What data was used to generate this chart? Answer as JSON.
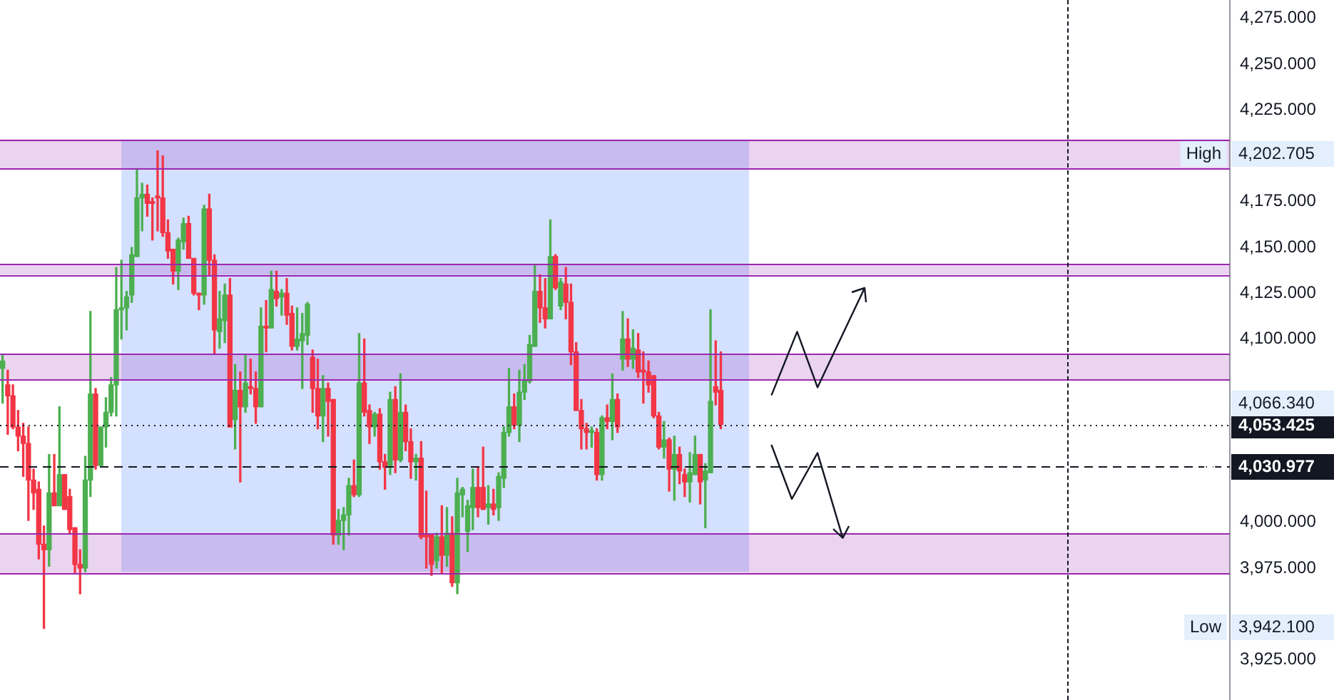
{
  "chart_data": {
    "type": "candlestick",
    "categories": [
      null,
      null,
      null,
      null,
      null,
      null,
      null,
      null,
      null,
      null,
      null,
      null,
      null,
      null,
      null,
      null,
      null,
      null,
      null,
      null,
      null,
      null,
      null,
      null,
      null,
      null,
      null,
      null,
      null,
      null,
      null,
      null,
      null,
      null,
      null,
      null,
      null,
      null,
      null,
      null,
      null,
      null,
      null,
      null,
      null,
      null,
      null,
      null,
      null,
      null,
      null,
      null,
      null,
      null,
      null,
      null,
      null,
      null,
      null,
      null,
      null,
      null,
      null,
      null,
      null,
      null,
      null,
      null,
      null,
      null,
      null,
      null,
      null,
      null,
      null,
      null,
      null,
      null,
      null,
      null,
      null,
      null,
      null,
      null,
      null,
      null,
      null,
      null,
      null,
      null,
      null,
      null,
      null,
      null,
      null,
      null,
      null,
      null,
      null,
      null,
      null,
      null,
      null,
      null,
      null,
      null,
      null,
      null,
      null,
      null,
      null,
      null,
      null,
      null,
      null,
      null,
      null,
      null,
      null,
      null,
      null,
      null,
      null,
      null,
      null,
      null,
      null,
      null,
      null,
      null,
      null,
      null,
      null,
      null,
      null,
      null,
      null,
      null,
      null,
      null,
      null,
      null,
      null,
      null,
      null,
      null,
      null,
      null,
      null,
      null,
      null,
      null,
      null,
      null,
      null,
      null,
      null,
      null,
      null,
      null,
      null,
      null,
      null,
      null,
      null,
      null,
      null,
      null,
      null,
      null,
      null,
      null,
      null,
      null,
      null,
      null,
      null,
      null,
      null,
      null,
      null,
      null,
      null,
      null,
      null,
      null,
      null,
      null,
      null,
      null,
      null,
      null,
      null,
      null,
      null,
      null,
      null,
      null,
      null,
      null,
      null,
      null,
      null,
      null,
      null,
      null,
      null,
      null,
      null,
      null,
      null,
      null,
      null,
      null,
      null,
      null,
      null,
      null,
      null,
      null,
      null,
      null,
      null,
      null,
      null,
      null,
      null,
      null,
      null,
      null,
      null,
      null,
      null,
      null,
      null,
      null,
      null,
      null
    ],
    "ohlc": [
      [
        4084,
        4091,
        4065,
        4088
      ],
      [
        4075,
        4083,
        4048,
        4069
      ],
      [
        4069,
        4075,
        4051,
        4052
      ],
      [
        4052,
        4061,
        4039,
        4047
      ],
      [
        4047,
        4054,
        4025,
        4043
      ],
      [
        4043,
        4052,
        4001,
        4023
      ],
      [
        4023,
        4029,
        4007,
        4016
      ],
      [
        4018,
        4022,
        3980,
        3988
      ],
      [
        3988,
        3998,
        3942.1,
        3985
      ],
      [
        3985,
        4037,
        3976,
        4016
      ],
      [
        4016,
        4037,
        4009,
        4009
      ],
      [
        4009,
        4063,
        4009,
        4026
      ],
      [
        4026,
        4026,
        4007,
        4007
      ],
      [
        4014,
        4018,
        3994,
        3996
      ],
      [
        3997,
        3997,
        3972,
        3977
      ],
      [
        3977,
        3985,
        3961,
        3975
      ],
      [
        3975,
        4036,
        3973,
        4023
      ],
      [
        4023,
        4115,
        4014,
        4070
      ],
      [
        4070,
        4073,
        4029,
        4031
      ],
      [
        4031,
        4052,
        4031,
        4052
      ],
      [
        4052,
        4068,
        4041,
        4060
      ],
      [
        4060,
        4079,
        4058,
        4075
      ],
      [
        4075,
        4139,
        4058,
        4116
      ],
      [
        4116,
        4143,
        4100,
        4117
      ],
      [
        4117,
        4126,
        4105,
        4123
      ],
      [
        4124,
        4150,
        4120,
        4146
      ],
      [
        4145,
        4193,
        4145,
        4177
      ],
      [
        4177,
        4185,
        4159,
        4179
      ],
      [
        4179,
        4184,
        4167,
        4174
      ],
      [
        4175,
        4177,
        4154,
        4174
      ],
      [
        4178,
        4202.705,
        4159,
        4177
      ],
      [
        4177,
        4200,
        4156,
        4158
      ],
      [
        4158,
        4165,
        4144,
        4148
      ],
      [
        4149,
        4149,
        4130,
        4137
      ],
      [
        4137,
        4155,
        4127,
        4154
      ],
      [
        4153,
        4166,
        4149,
        4163
      ],
      [
        4163,
        4167,
        4144,
        4144
      ],
      [
        4144,
        4144,
        4124,
        4125
      ],
      [
        4125,
        4125,
        4116,
        4124
      ],
      [
        4124,
        4173,
        4119,
        4171
      ],
      [
        4171,
        4179,
        4135,
        4143
      ],
      [
        4143,
        4146,
        4092,
        4105
      ],
      [
        4104,
        4126,
        4095,
        4111
      ],
      [
        4110,
        4130,
        4098,
        4124
      ],
      [
        4124,
        4133,
        4052,
        4052
      ],
      [
        4056,
        4086,
        4040,
        4072
      ],
      [
        4072,
        4082,
        4022,
        4063
      ],
      [
        4063,
        4091,
        4060,
        4076
      ],
      [
        4074,
        4089,
        4070,
        4073
      ],
      [
        4073,
        4082,
        4054,
        4063
      ],
      [
        4063,
        4117,
        4063,
        4107
      ],
      [
        4107,
        4121,
        4093,
        4106
      ],
      [
        4106,
        4137,
        4106,
        4127
      ],
      [
        4126,
        4137,
        4118,
        4122
      ],
      [
        4123,
        4127,
        4113,
        4125
      ],
      [
        4125,
        4133,
        4108,
        4113
      ],
      [
        4114,
        4118,
        4094,
        4096
      ],
      [
        4096,
        4117,
        4094,
        4100
      ],
      [
        4099,
        4114,
        4073,
        4103
      ],
      [
        4102,
        4120,
        4097,
        4119
      ],
      [
        4090,
        4094,
        4060,
        4073
      ],
      [
        4073,
        4089,
        4051,
        4058
      ],
      [
        4058,
        4080,
        4044,
        4073
      ],
      [
        4073,
        4076,
        4047,
        4066
      ],
      [
        4067,
        4067,
        3988,
        3993
      ],
      [
        3993,
        4007,
        3988,
        4001
      ],
      [
        4001,
        4008,
        3985,
        4004
      ],
      [
        4004,
        4024,
        3993,
        4020
      ],
      [
        4020,
        4034,
        4014,
        4015
      ],
      [
        4015,
        4103,
        4014,
        4076
      ],
      [
        4076,
        4100,
        4058,
        4060
      ],
      [
        4061,
        4064,
        4043,
        4052
      ],
      [
        4052,
        4060,
        4047,
        4059
      ],
      [
        4059,
        4062,
        4029,
        4033
      ],
      [
        4033,
        4037,
        4018,
        4030
      ],
      [
        4031,
        4071,
        4026,
        4067
      ],
      [
        4067,
        4074,
        4027,
        4034
      ],
      [
        4034,
        4081,
        4033,
        4060
      ],
      [
        4060,
        4064,
        4039,
        4044
      ],
      [
        4044,
        4051,
        4024,
        4033
      ],
      [
        4033,
        4037,
        4023,
        4035
      ],
      [
        4035,
        4044,
        3991,
        3992
      ],
      [
        3993,
        4017,
        3975,
        3992
      ],
      [
        3993,
        3993,
        3971,
        3977
      ],
      [
        3979,
        3994,
        3975,
        3992
      ],
      [
        3992,
        4009,
        3972,
        3982
      ],
      [
        3982,
        4008,
        3976,
        3994
      ],
      [
        3994,
        4003,
        3965,
        3967
      ],
      [
        3967,
        4024,
        3961,
        4016
      ],
      [
        4015,
        4019,
        4003,
        4018
      ],
      [
        3995,
        4012,
        3984,
        4009
      ],
      [
        4008,
        4029,
        3996,
        4019
      ],
      [
        4019,
        4030,
        4003,
        4008
      ],
      [
        4019,
        4041,
        4007,
        4007
      ],
      [
        4008,
        4020,
        3999,
        4010
      ],
      [
        4010,
        4018,
        4004,
        4007
      ],
      [
        4008,
        4027,
        4001,
        4025
      ],
      [
        4024,
        4052,
        4019,
        4049
      ],
      [
        4049,
        4084,
        4047,
        4063
      ],
      [
        4063,
        4070,
        4051,
        4053
      ],
      [
        4053,
        4083,
        4044,
        4071
      ],
      [
        4071,
        4086,
        4067,
        4077
      ],
      [
        4077,
        4102,
        4076,
        4097
      ],
      [
        4096,
        4140,
        4096,
        4126
      ],
      [
        4126,
        4135,
        4109,
        4117
      ],
      [
        4117,
        4133,
        4106,
        4111
      ],
      [
        4111,
        4165,
        4111,
        4145
      ],
      [
        4145,
        4146,
        4127,
        4128
      ],
      [
        4118,
        4133,
        4116,
        4131
      ],
      [
        4130,
        4139,
        4111,
        4120
      ],
      [
        4120,
        4130,
        4086,
        4093
      ],
      [
        4093,
        4098,
        4061,
        4061
      ],
      [
        4061,
        4067,
        4040,
        4051
      ],
      [
        4051,
        4054,
        4040,
        4049
      ],
      [
        4049,
        4052,
        4041,
        4050
      ],
      [
        4049,
        4051,
        4023,
        4026
      ],
      [
        4026,
        4058,
        4023,
        4057
      ],
      [
        4057,
        4064,
        4051,
        4055
      ],
      [
        4055,
        4081,
        4045,
        4067
      ],
      [
        4067,
        4070,
        4049,
        4052
      ],
      [
        4089,
        4115,
        4083,
        4100
      ],
      [
        4100,
        4111,
        4085,
        4089
      ],
      [
        4089,
        4105,
        4084,
        4095
      ],
      [
        4094,
        4103,
        4079,
        4082
      ],
      [
        4083,
        4093,
        4065,
        4082
      ],
      [
        4082,
        4088,
        4071,
        4075
      ],
      [
        4080,
        4080,
        4057,
        4058
      ],
      [
        4058,
        4060,
        4040,
        4041
      ],
      [
        4041,
        4055,
        4035,
        4045
      ],
      [
        4045,
        4046,
        4017,
        4029
      ],
      [
        4029,
        4047,
        4012,
        4037
      ],
      [
        4037,
        4041,
        4021,
        4028
      ],
      [
        4026,
        4029,
        4014,
        4022
      ],
      [
        4022,
        4038,
        4011,
        4027
      ],
      [
        4026,
        4047,
        4026,
        4037
      ],
      [
        4037,
        4037,
        4010,
        4022
      ],
      [
        4023,
        4032,
        3997,
        4028
      ],
      [
        4027,
        4116,
        4027,
        4066
      ],
      [
        4074,
        4099,
        4064,
        4071
      ],
      [
        4072,
        4093,
        4051,
        4053.425
      ],
      null,
      null,
      null,
      null,
      null,
      null,
      null,
      null,
      null,
      null,
      null,
      null,
      null,
      null,
      null,
      null,
      null,
      null,
      null,
      null,
      null,
      null,
      null,
      null,
      null,
      null,
      null,
      null,
      null,
      null,
      null,
      null,
      null,
      null,
      null,
      null,
      null,
      null,
      null,
      null,
      null,
      null,
      null,
      null,
      null,
      null,
      null,
      null,
      null,
      null,
      null,
      null,
      null,
      null,
      null,
      null,
      null,
      null,
      null,
      null,
      null,
      null,
      null,
      null,
      null,
      null,
      null,
      null,
      null,
      null,
      null,
      null,
      null,
      null,
      null,
      null,
      null,
      null,
      null,
      null,
      null,
      null,
      null,
      null,
      null,
      null,
      null,
      null,
      null,
      null,
      null,
      null,
      null,
      null,
      null,
      null,
      null,
      null
    ],
    "colors": [
      "#4caf50",
      "#f23645",
      "#f23645",
      "#f23645",
      "#f23645",
      "#f23645",
      "#f23645",
      "#f23645",
      "#f23645",
      "#4caf50",
      "#f23645",
      "#4caf50",
      "#f23645",
      "#f23645",
      "#f23645",
      "#f23645",
      "#4caf50",
      "#4caf50",
      "#f23645",
      "#4caf50",
      "#4caf50",
      "#4caf50",
      "#4caf50",
      "#4caf50",
      "#4caf50",
      "#4caf50",
      "#4caf50",
      "#4caf50",
      "#f23645",
      "#f23645",
      "#f23645",
      "#f23645",
      "#f23645",
      "#f23645",
      "#4caf50",
      "#4caf50",
      "#f23645",
      "#f23645",
      "#f23645",
      "#4caf50",
      "#f23645",
      "#f23645",
      "#4caf50",
      "#4caf50",
      "#f23645",
      "#4caf50",
      "#f23645",
      "#4caf50",
      "#f23645",
      "#f23645",
      "#4caf50",
      "#f23645",
      "#4caf50",
      "#f23645",
      "#4caf50",
      "#f23645",
      "#f23645",
      "#4caf50",
      "#4caf50",
      "#4caf50",
      "#f23645",
      "#f23645",
      "#4caf50",
      "#f23645",
      "#f23645",
      "#4caf50",
      "#4caf50",
      "#4caf50",
      "#f23645",
      "#4caf50",
      "#f23645",
      "#f23645",
      "#4caf50",
      "#f23645",
      "#f23645",
      "#4caf50",
      "#f23645",
      "#4caf50",
      "#f23645",
      "#f23645",
      "#4caf50",
      "#f23645",
      "#f23645",
      "#f23645",
      "#4caf50",
      "#f23645",
      "#4caf50",
      "#f23645",
      "#4caf50",
      "#4caf50",
      "#4caf50",
      "#4caf50",
      "#f23645",
      "#f23645",
      "#4caf50",
      "#f23645",
      "#4caf50",
      "#4caf50",
      "#4caf50",
      "#f23645",
      "#4caf50",
      "#4caf50",
      "#4caf50",
      "#4caf50",
      "#f23645",
      "#f23645",
      "#4caf50",
      "#f23645",
      "#4caf50",
      "#f23645",
      "#f23645",
      "#f23645",
      "#f23645",
      "#f23645",
      "#4caf50",
      "#f23645",
      "#4caf50",
      "#f23645",
      "#4caf50",
      "#f23645",
      "#4caf50",
      "#f23645",
      "#4caf50",
      "#f23645",
      "#f23645",
      "#f23645",
      "#f23645",
      "#f23645",
      "#4caf50",
      "#f23645",
      "#4caf50",
      "#f23645",
      "#f23645",
      "#4caf50",
      "#4caf50",
      "#f23645",
      "#4caf50",
      "#4caf50",
      "#f23645",
      "#f23645",
      null,
      null,
      null,
      null,
      null,
      null,
      null,
      null,
      null,
      null,
      null,
      null,
      null,
      null,
      null,
      null,
      null,
      null,
      null,
      null,
      null,
      null,
      null,
      null,
      null,
      null,
      null,
      null,
      null,
      null,
      null,
      null,
      null,
      null,
      null,
      null,
      null,
      null,
      null,
      null,
      null,
      null,
      null,
      null,
      null,
      null,
      null,
      null,
      null,
      null,
      null,
      null,
      null,
      null,
      null,
      null,
      null,
      null,
      null,
      null,
      null,
      null,
      null,
      null,
      null,
      null,
      null,
      null,
      null,
      null,
      null,
      null,
      null,
      null,
      null,
      null,
      null,
      null,
      null,
      null,
      null,
      null,
      null,
      null,
      null,
      null,
      null,
      null,
      null,
      null,
      null,
      null,
      null,
      null,
      null,
      null,
      null,
      null
    ],
    "ylim": [
      3903,
      4285
    ],
    "yticks": [
      {
        "value": 3925,
        "label": "3,925.000"
      },
      {
        "value": 3975,
        "label": "3,975.000"
      },
      {
        "value": 4000,
        "label": "4,000.000"
      },
      {
        "value": 4100,
        "label": "4,100.000"
      },
      {
        "value": 4125,
        "label": "4,125.000"
      },
      {
        "value": 4150,
        "label": "4,150.000"
      },
      {
        "value": 4175,
        "label": "4,175.000"
      },
      {
        "value": 4225,
        "label": "4,225.000"
      },
      {
        "value": 4250,
        "label": "4,250.000"
      },
      {
        "value": 4275,
        "label": "4,275.000"
      }
    ],
    "bands": [
      {
        "axis": "y",
        "from": 4193,
        "to": 4209,
        "color": "#9c27b0"
      },
      {
        "axis": "y",
        "from": 4135,
        "to": 4141,
        "color": "#9c27b0"
      },
      {
        "axis": "y",
        "from": 4078,
        "to": 4092,
        "color": "#9c27b0"
      },
      {
        "axis": "y",
        "from": 3972,
        "to": 3994,
        "color": "#9c27b0"
      }
    ],
    "ref_lines": [
      {
        "axis": "y",
        "value": 4193,
        "line_style": "solid",
        "color": "#9c27b0"
      },
      {
        "axis": "y",
        "value": 4209,
        "line_style": "solid",
        "color": "#9c27b0"
      },
      {
        "axis": "y",
        "value": 4135,
        "line_style": "solid",
        "color": "#9c27b0"
      },
      {
        "axis": "y",
        "value": 4141,
        "line_style": "solid",
        "color": "#9c27b0"
      },
      {
        "axis": "y",
        "value": 4078,
        "line_style": "solid",
        "color": "#9c27b0"
      },
      {
        "axis": "y",
        "value": 4092,
        "line_style": "solid",
        "color": "#9c27b0"
      },
      {
        "axis": "y",
        "value": 3972,
        "line_style": "solid",
        "color": "#9c27b0"
      },
      {
        "axis": "y",
        "value": 3994,
        "line_style": "solid",
        "color": "#9c27b0"
      },
      {
        "axis": "y",
        "value": 4053.425,
        "label": "4,053.425",
        "line_style": "dotted",
        "color": "#131722"
      },
      {
        "axis": "y",
        "value": 4030.977,
        "label": "4,030.977",
        "line_style": "dashed",
        "color": "#131722"
      }
    ],
    "annotations": [
      "High",
      "4,202.705",
      "4,066.340",
      "Low",
      "3,942.100"
    ],
    "grid": false,
    "legend": false
  }
}
